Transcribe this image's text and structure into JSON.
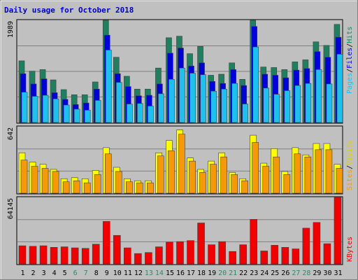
{
  "chart_data": [
    {
      "type": "bar",
      "title": "Daily usage for October 2018",
      "panel": "top",
      "y_max_label": "1989",
      "ylabel_parts": [
        "Pages",
        "/",
        "Files",
        "/",
        "Hits"
      ],
      "ylim": [
        0,
        1989
      ],
      "categories": [
        "1",
        "2",
        "3",
        "4",
        "5",
        "6",
        "7",
        "8",
        "9",
        "10",
        "11",
        "12",
        "13",
        "14",
        "15",
        "16",
        "17",
        "18",
        "19",
        "20",
        "21",
        "22",
        "23",
        "24",
        "25",
        "26",
        "27",
        "28",
        "29",
        "30",
        "31"
      ],
      "weekend_days": [
        "6",
        "7",
        "13",
        "14",
        "20",
        "21",
        "27",
        "28"
      ],
      "series": [
        {
          "name": "Hits",
          "color": "#1f7f5f",
          "values": [
            1200,
            1000,
            1030,
            830,
            640,
            540,
            540,
            790,
            1989,
            1270,
            900,
            650,
            650,
            1060,
            1650,
            1680,
            1340,
            1480,
            920,
            940,
            1160,
            840,
            1989,
            1080,
            1070,
            1030,
            1180,
            1220,
            1570,
            1500,
            1910
          ]
        },
        {
          "name": "Files",
          "color": "#0000d8",
          "values": [
            950,
            750,
            850,
            580,
            450,
            350,
            380,
            650,
            1700,
            950,
            700,
            520,
            530,
            750,
            1350,
            1450,
            1100,
            1160,
            800,
            760,
            1030,
            720,
            1870,
            940,
            920,
            870,
            1020,
            1050,
            1380,
            1270,
            1660
          ]
        },
        {
          "name": "Pages",
          "color": "#1ec1ee",
          "values": [
            590,
            510,
            530,
            460,
            340,
            260,
            240,
            430,
            1410,
            780,
            360,
            370,
            320,
            560,
            840,
            1060,
            960,
            930,
            610,
            650,
            760,
            360,
            1470,
            670,
            550,
            620,
            720,
            760,
            1030,
            750,
            1330
          ]
        }
      ]
    },
    {
      "type": "bar",
      "panel": "middle",
      "y_max_label": "642",
      "ylabel_parts": [
        "Sites",
        "/",
        "Visits"
      ],
      "ylim": [
        0,
        642
      ],
      "categories": [
        "1",
        "2",
        "3",
        "4",
        "5",
        "6",
        "7",
        "8",
        "9",
        "10",
        "11",
        "12",
        "13",
        "14",
        "15",
        "16",
        "17",
        "18",
        "19",
        "20",
        "21",
        "22",
        "23",
        "24",
        "25",
        "26",
        "27",
        "28",
        "29",
        "30",
        "31"
      ],
      "series": [
        {
          "name": "Visits",
          "color": "#ffff00",
          "values": [
            390,
            300,
            280,
            230,
            140,
            150,
            140,
            220,
            440,
            250,
            140,
            120,
            120,
            390,
            510,
            610,
            340,
            230,
            310,
            390,
            200,
            140,
            560,
            290,
            430,
            210,
            440,
            370,
            480,
            480,
            280
          ]
        },
        {
          "name": "Sites",
          "color": "#f49a08",
          "values": [
            320,
            260,
            240,
            210,
            110,
            120,
            100,
            180,
            380,
            210,
            110,
            100,
            100,
            360,
            410,
            570,
            310,
            200,
            280,
            350,
            180,
            120,
            490,
            260,
            350,
            180,
            380,
            350,
            420,
            420,
            240
          ]
        }
      ]
    },
    {
      "type": "bar",
      "panel": "bottom",
      "y_max_label": "64145",
      "ylabel_parts": [
        "KBytes"
      ],
      "ylim": [
        0,
        64145
      ],
      "categories": [
        "1",
        "2",
        "3",
        "4",
        "5",
        "6",
        "7",
        "8",
        "9",
        "10",
        "11",
        "12",
        "13",
        "14",
        "15",
        "16",
        "17",
        "18",
        "19",
        "20",
        "21",
        "22",
        "23",
        "24",
        "25",
        "26",
        "27",
        "28",
        "29",
        "30",
        "31"
      ],
      "series": [
        {
          "name": "KBytes",
          "color": "#f00000",
          "values": [
            17500,
            17000,
            17500,
            16000,
            16500,
            15500,
            15000,
            19000,
            41000,
            27500,
            15500,
            10000,
            11000,
            16500,
            21000,
            21500,
            22500,
            39500,
            18500,
            21500,
            12000,
            18500,
            43000,
            12500,
            18000,
            16000,
            14500,
            34500,
            40000,
            19500,
            64145
          ]
        }
      ]
    }
  ]
}
